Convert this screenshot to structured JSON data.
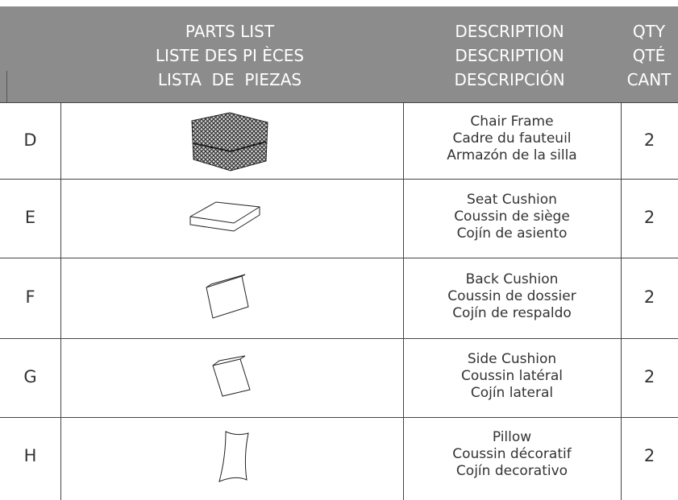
{
  "header": {
    "parts_list": [
      "PARTS LIST",
      "LISTE DES PI ÈCES",
      "LISTA  DE  PIEZAS"
    ],
    "description": [
      "DESCRIPTION",
      "DESCRIPTION",
      "DESCRIPCIÓN"
    ],
    "qty": [
      "QTY",
      "QTÉ",
      "CANT"
    ]
  },
  "rows": [
    {
      "id": "D",
      "description": [
        "Chair Frame",
        "Cadre du fauteuil",
        "Armazón de la silla"
      ],
      "qty": 2
    },
    {
      "id": "E",
      "description": [
        "Seat Cushion",
        "Coussin de siège",
        "Cojín de asiento"
      ],
      "qty": 2
    },
    {
      "id": "F",
      "description": [
        "Back Cushion",
        "Coussin de dossier",
        "Cojín de respaldo"
      ],
      "qty": 2
    },
    {
      "id": "G",
      "description": [
        "Side Cushion",
        "Coussin latéral",
        "Cojín lateral"
      ],
      "qty": 2
    },
    {
      "id": "H",
      "description": [
        "Pillow",
        "Coussin décoratif",
        "Cojín decorativo"
      ],
      "qty": 2
    }
  ]
}
